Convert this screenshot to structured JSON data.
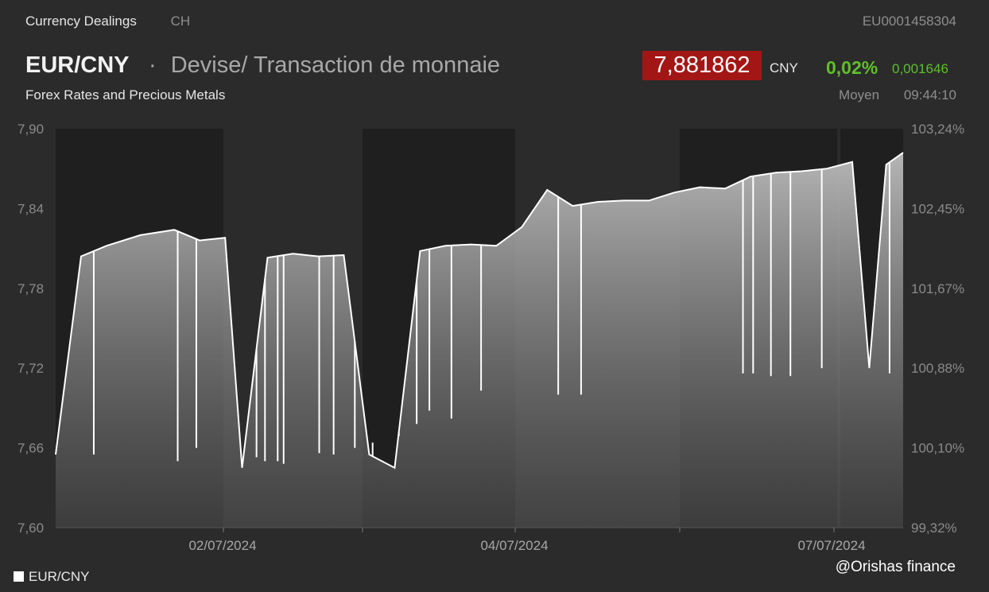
{
  "header": {
    "category": "Currency Dealings",
    "country": "CH",
    "isin": "EU0001458304",
    "pair": "EUR/CNY",
    "separator": "·",
    "description": "Devise/ Transaction de monnaie",
    "subtitle": "Forex Rates and Precious Metals",
    "price": "7,881862",
    "currency": "CNY",
    "change_pct": "0,02%",
    "change_abs": "0,001646",
    "price_type": "Moyen",
    "time": "09:44:10"
  },
  "colors": {
    "background": "#2b2b2b",
    "session_shade": "#1f1f1f",
    "price_badge": "#a31616",
    "positive": "#5fbf2a",
    "line": "#ffffff"
  },
  "legend": {
    "label": "EUR/CNY"
  },
  "credit": "@Orishas finance",
  "chart_data": {
    "type": "area",
    "series": [
      {
        "name": "EUR/CNY",
        "x": [
          0,
          0.03,
          0.06,
          0.1,
          0.14,
          0.17,
          0.2,
          0.22,
          0.25,
          0.28,
          0.31,
          0.34,
          0.37,
          0.4,
          0.43,
          0.46,
          0.49,
          0.52,
          0.55,
          0.58,
          0.61,
          0.64,
          0.67,
          0.7,
          0.73,
          0.76,
          0.79,
          0.82,
          0.85,
          0.88,
          0.91,
          0.94,
          0.96,
          0.98,
          1.0
        ],
        "y": [
          7.655,
          7.804,
          7.812,
          7.82,
          7.824,
          7.816,
          7.818,
          7.645,
          7.803,
          7.806,
          7.804,
          7.805,
          7.655,
          7.645,
          7.808,
          7.812,
          7.813,
          7.812,
          7.826,
          7.854,
          7.842,
          7.845,
          7.846,
          7.846,
          7.852,
          7.856,
          7.855,
          7.864,
          7.867,
          7.868,
          7.87,
          7.875,
          7.72,
          7.873,
          7.882
        ]
      }
    ],
    "ylim": [
      7.6,
      7.9
    ],
    "y_ticks": [
      "7,90",
      "7,84",
      "7,78",
      "7,72",
      "7,66",
      "7,60"
    ],
    "y2_ticks": [
      "103,24%",
      "102,45%",
      "101,67%",
      "100,88%",
      "100,10%",
      "99,32%"
    ],
    "x_ticks": [
      "02/07/2024",
      "04/07/2024",
      "07/07/2024"
    ],
    "dips": [
      {
        "x": 0.045,
        "y": 7.655
      },
      {
        "x": 0.144,
        "y": 7.65
      },
      {
        "x": 0.166,
        "y": 7.66
      },
      {
        "x": 0.237,
        "y": 7.653
      },
      {
        "x": 0.247,
        "y": 7.65
      },
      {
        "x": 0.262,
        "y": 7.65
      },
      {
        "x": 0.269,
        "y": 7.648
      },
      {
        "x": 0.311,
        "y": 7.656
      },
      {
        "x": 0.328,
        "y": 7.655
      },
      {
        "x": 0.353,
        "y": 7.66
      },
      {
        "x": 0.374,
        "y": 7.664
      },
      {
        "x": 0.405,
        "y": 7.669
      },
      {
        "x": 0.426,
        "y": 7.678
      },
      {
        "x": 0.441,
        "y": 7.688
      },
      {
        "x": 0.467,
        "y": 7.682
      },
      {
        "x": 0.502,
        "y": 7.703
      },
      {
        "x": 0.593,
        "y": 7.7
      },
      {
        "x": 0.62,
        "y": 7.7
      },
      {
        "x": 0.811,
        "y": 7.716
      },
      {
        "x": 0.823,
        "y": 7.716
      },
      {
        "x": 0.844,
        "y": 7.714
      },
      {
        "x": 0.867,
        "y": 7.714
      },
      {
        "x": 0.904,
        "y": 7.72
      },
      {
        "x": 0.984,
        "y": 7.716
      }
    ],
    "grid": false,
    "legend_position": "bottom-left"
  }
}
